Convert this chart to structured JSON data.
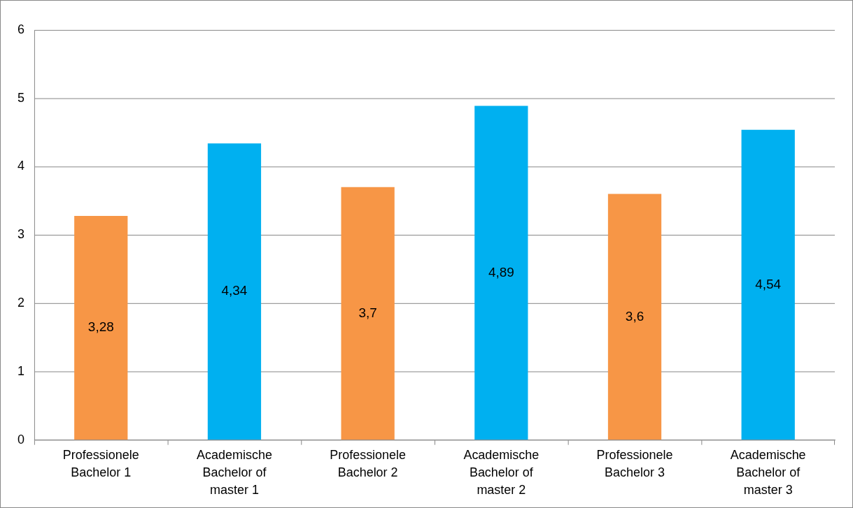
{
  "chart_data": {
    "type": "bar",
    "categories": [
      "Professionele Bachelor 1",
      "Academische Bachelor of master 1",
      "Professionele Bachelor 2",
      "Academische Bachelor of master 2",
      "Professionele Bachelor 3",
      "Academische Bachelor of master 3"
    ],
    "values": [
      3.28,
      4.34,
      3.7,
      4.89,
      3.6,
      4.54
    ],
    "colors": [
      "#f79646",
      "#00b0f0",
      "#f79646",
      "#00b0f0",
      "#f79646",
      "#00b0f0"
    ],
    "value_labels": [
      "3,28",
      "4,34",
      "3,7",
      "4,89",
      "3,6",
      "4,54"
    ],
    "ylim": [
      0,
      6
    ],
    "yticks": [
      0,
      1,
      2,
      3,
      4,
      5,
      6
    ],
    "grid": "y",
    "legend": false
  }
}
